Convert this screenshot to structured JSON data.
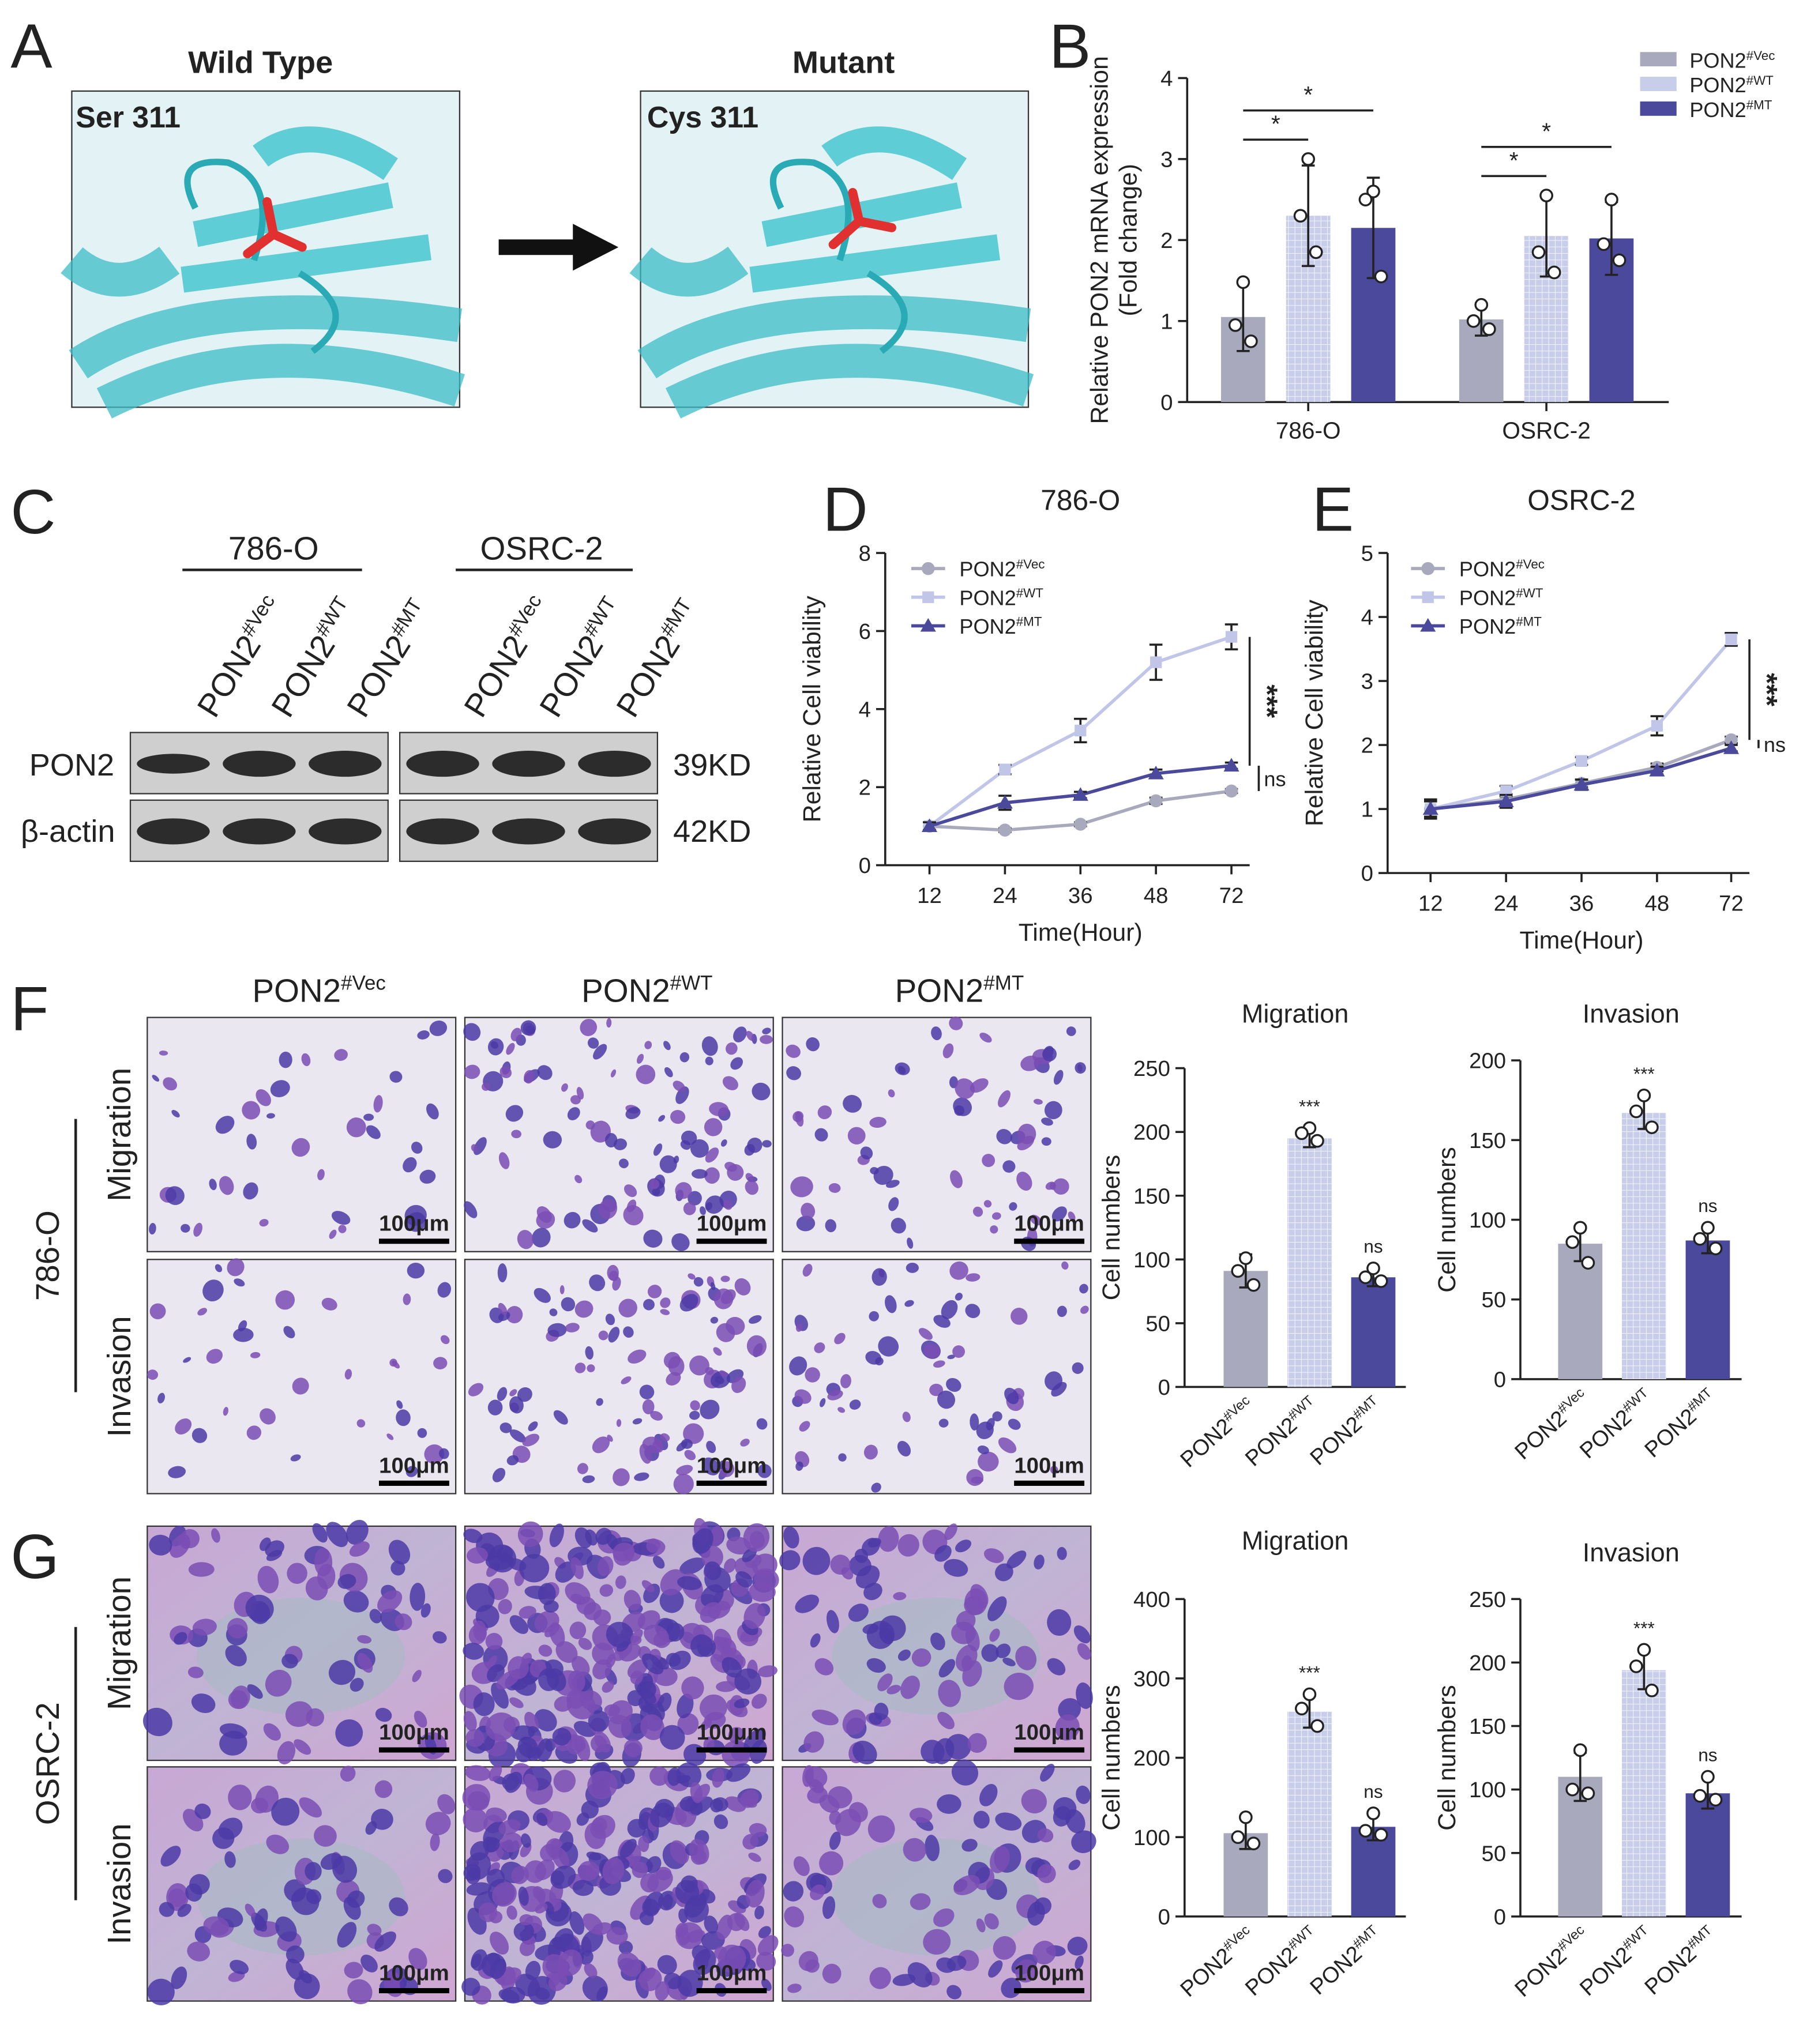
{
  "panel_labels": [
    "A",
    "B",
    "C",
    "D",
    "E",
    "F",
    "G"
  ],
  "panel_a": {
    "titles": [
      "Wild Type",
      "Mutant"
    ],
    "residues": [
      "Ser 311",
      "Cys 311"
    ]
  },
  "panel_c": {
    "groups": [
      "786-O",
      "OSRC-2"
    ],
    "lanes": [
      "PON2#Vec",
      "PON2#WT",
      "PON2#MT"
    ],
    "bands": [
      "PON2",
      "β-actin"
    ],
    "sizes": [
      "39KD",
      "42KD"
    ]
  },
  "micrographs": {
    "columns": [
      "PON2#Vec",
      "PON2#WT",
      "PON2#MT"
    ],
    "rows": [
      "Migration",
      "Invasion"
    ],
    "cell_lines": [
      "786-O",
      "OSRC-2"
    ],
    "scale_bar": "100μm"
  },
  "chart_data": [
    {
      "type": "bar",
      "categories": [
        "786-O",
        "OSRC-2"
      ],
      "ylabel": [
        "Relative PON2 mRNA expression",
        "(Fold change)"
      ],
      "ylim": [
        0,
        4
      ],
      "yticks": [
        0,
        1,
        2,
        3,
        4
      ],
      "legend": "upper right",
      "series": [
        {
          "name": "PON2#Vec",
          "color": "#a9a9bd",
          "values": [
            1.05,
            1.02
          ],
          "errors": [
            0.42,
            0.2
          ],
          "points": [
            [
              1.48,
              0.95,
              0.75
            ],
            [
              1.2,
              1.0,
              0.9
            ]
          ]
        },
        {
          "name": "PON2#WT",
          "color": "#c8cde9",
          "hatch": true,
          "values": [
            2.3,
            2.05
          ],
          "errors": [
            0.62,
            0.5
          ],
          "points": [
            [
              3.0,
              2.3,
              1.85
            ],
            [
              2.55,
              1.85,
              1.6
            ]
          ]
        },
        {
          "name": "PON2#MT",
          "color": "#4a499c",
          "values": [
            2.15,
            2.02
          ],
          "errors": [
            0.62,
            0.45
          ],
          "points": [
            [
              2.6,
              2.5,
              1.55
            ],
            [
              2.5,
              1.95,
              1.75
            ]
          ]
        }
      ],
      "annotations": [
        {
          "text": "*",
          "category": 0,
          "from": 0,
          "to": 1
        },
        {
          "text": "*",
          "category": 0,
          "from": 0,
          "to": 2
        },
        {
          "text": "*",
          "category": 1,
          "from": 0,
          "to": 1
        },
        {
          "text": "*",
          "category": 1,
          "from": 0,
          "to": 2
        }
      ]
    },
    {
      "type": "line",
      "title": "786-O",
      "categories": [
        "12",
        "24",
        "36",
        "48",
        "72"
      ],
      "xlabel": "Time(Hour)",
      "ylabel": "Relative Cell viability",
      "ylim": [
        0,
        8
      ],
      "yticks": [
        0,
        2,
        4,
        6,
        8
      ],
      "legend": "upper left",
      "series": [
        {
          "name": "PON2#Vec",
          "color": "#a9a9bd",
          "marker": "circle",
          "values": [
            1.0,
            0.9,
            1.05,
            1.65,
            1.9
          ],
          "errors": [
            0.1,
            0.05,
            0.05,
            0.08,
            0.05
          ]
        },
        {
          "name": "PON2#WT",
          "color": "#c1c6e8",
          "marker": "square",
          "values": [
            1.0,
            2.45,
            3.45,
            5.2,
            5.85
          ],
          "errors": [
            0.1,
            0.12,
            0.3,
            0.45,
            0.32
          ]
        },
        {
          "name": "PON2#MT",
          "color": "#4a499c",
          "marker": "triangle",
          "values": [
            1.0,
            1.6,
            1.8,
            2.35,
            2.55
          ],
          "errors": [
            0.1,
            0.18,
            0.08,
            0.1,
            0.08
          ]
        }
      ],
      "annotations": [
        {
          "text": "***",
          "series": [
            1,
            2
          ]
        },
        {
          "text": "ns",
          "series": [
            2,
            0
          ]
        }
      ]
    },
    {
      "type": "line",
      "title": "OSRC-2",
      "categories": [
        "12",
        "24",
        "36",
        "48",
        "72"
      ],
      "xlabel": "Time(Hour)",
      "ylabel": "Relative Cell viability",
      "ylim": [
        0,
        5
      ],
      "yticks": [
        0,
        1,
        2,
        3,
        4,
        5
      ],
      "legend": "upper left",
      "series": [
        {
          "name": "PON2#Vec",
          "color": "#a9a9bd",
          "marker": "circle",
          "values": [
            1.0,
            1.15,
            1.4,
            1.65,
            2.08
          ],
          "errors": [
            0.12,
            0.08,
            0.06,
            0.06,
            0.05
          ]
        },
        {
          "name": "PON2#WT",
          "color": "#c1c6e8",
          "marker": "square",
          "values": [
            1.0,
            1.28,
            1.75,
            2.3,
            3.65
          ],
          "errors": [
            0.12,
            0.08,
            0.06,
            0.15,
            0.1
          ]
        },
        {
          "name": "PON2#MT",
          "color": "#4a499c",
          "marker": "triangle",
          "values": [
            1.0,
            1.12,
            1.38,
            1.6,
            1.95
          ],
          "errors": [
            0.15,
            0.1,
            0.08,
            0.06,
            0.05
          ]
        }
      ],
      "annotations": [
        {
          "text": "***",
          "series": [
            1,
            0
          ]
        },
        {
          "text": "ns",
          "series": [
            0,
            2
          ]
        }
      ]
    },
    {
      "type": "bar",
      "title": "Migration",
      "categories": [
        "PON2#Vec",
        "PON2#WT",
        "PON2#MT"
      ],
      "ylabel": [
        "Cell numbers"
      ],
      "ylim": [
        0,
        250
      ],
      "yticks": [
        0,
        50,
        100,
        150,
        200,
        250
      ],
      "colors": [
        "#a9a9bd",
        "#c8cde9",
        "#4a499c"
      ],
      "hatch_index": 1,
      "values": [
        91,
        195,
        86
      ],
      "errors": [
        13,
        7,
        7
      ],
      "points": [
        [
          101,
          91,
          80
        ],
        [
          203,
          199,
          193
        ],
        [
          93,
          86,
          83
        ]
      ],
      "annotations": [
        {
          "text": "***",
          "index": 1
        },
        {
          "text": "ns",
          "index": 2
        }
      ]
    },
    {
      "type": "bar",
      "title": "Invasion",
      "categories": [
        "PON2#Vec",
        "PON2#WT",
        "PON2#MT"
      ],
      "ylabel": [
        "Cell numbers"
      ],
      "ylim": [
        0,
        200
      ],
      "yticks": [
        0,
        50,
        100,
        150,
        200
      ],
      "colors": [
        "#a9a9bd",
        "#c8cde9",
        "#4a499c"
      ],
      "hatch_index": 1,
      "values": [
        85,
        167,
        87
      ],
      "errors": [
        11,
        10,
        8
      ],
      "points": [
        [
          95,
          86,
          73
        ],
        [
          178,
          168,
          158
        ],
        [
          95,
          88,
          82
        ]
      ],
      "annotations": [
        {
          "text": "***",
          "index": 1
        },
        {
          "text": "ns",
          "index": 2
        }
      ]
    },
    {
      "type": "bar",
      "title": "Migration",
      "categories": [
        "PON2#Vec",
        "PON2#WT",
        "PON2#MT"
      ],
      "ylabel": [
        "Cell numbers"
      ],
      "ylim": [
        0,
        400
      ],
      "yticks": [
        0,
        100,
        200,
        300,
        400
      ],
      "colors": [
        "#a9a9bd",
        "#c8cde9",
        "#4a499c"
      ],
      "hatch_index": 1,
      "values": [
        105,
        258,
        113
      ],
      "errors": [
        20,
        20,
        17
      ],
      "points": [
        [
          125,
          100,
          92
        ],
        [
          280,
          262,
          240
        ],
        [
          130,
          108,
          103
        ]
      ],
      "annotations": [
        {
          "text": "***",
          "index": 1
        },
        {
          "text": "ns",
          "index": 2
        }
      ]
    },
    {
      "type": "bar",
      "title": "Invasion",
      "categories": [
        "PON2#Vec",
        "PON2#WT",
        "PON2#MT"
      ],
      "ylabel": [
        "Cell numbers"
      ],
      "ylim": [
        0,
        250
      ],
      "yticks": [
        0,
        50,
        100,
        150,
        200,
        250
      ],
      "colors": [
        "#a9a9bd",
        "#c8cde9",
        "#4a499c"
      ],
      "hatch_index": 1,
      "values": [
        110,
        194,
        97
      ],
      "errors": [
        19,
        15,
        12
      ],
      "points": [
        [
          131,
          100,
          97
        ],
        [
          210,
          197,
          178
        ],
        [
          110,
          95,
          92
        ]
      ],
      "annotations": [
        {
          "text": "***",
          "index": 1
        },
        {
          "text": "ns",
          "index": 2
        }
      ]
    }
  ]
}
